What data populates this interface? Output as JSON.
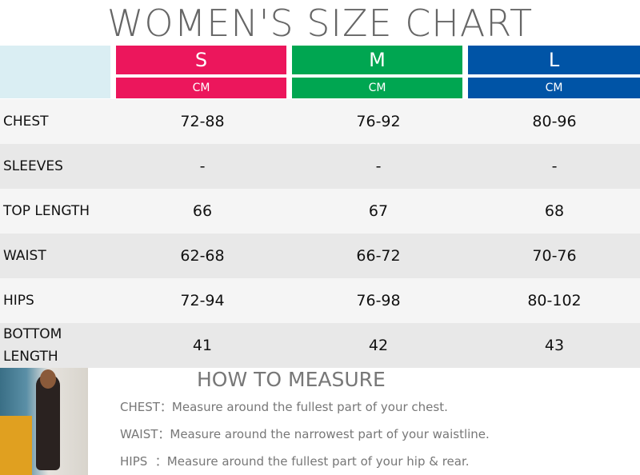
{
  "title": "WOMEN'S SIZE CHART",
  "sizes": [
    {
      "label": "S",
      "unit": "CM",
      "color": "#ec165c"
    },
    {
      "label": "M",
      "unit": "CM",
      "color": "#00a651"
    },
    {
      "label": "L",
      "unit": "CM",
      "color": "#0054a6"
    }
  ],
  "rows": [
    {
      "label": "CHEST",
      "values": [
        "72-88",
        "76-92",
        "80-96"
      ]
    },
    {
      "label": "SLEEVES",
      "values": [
        "-",
        "-",
        "-"
      ]
    },
    {
      "label": "TOP LENGTH",
      "values": [
        "66",
        "67",
        "68"
      ]
    },
    {
      "label": "WAIST",
      "values": [
        "62-68",
        "66-72",
        "70-76"
      ]
    },
    {
      "label": "HIPS",
      "values": [
        "72-94",
        "76-98",
        "80-102"
      ]
    },
    {
      "label": "BOTTOM LENGTH",
      "values": [
        "41",
        "42",
        "43"
      ]
    }
  ],
  "how_to": {
    "title": "HOW TO MEASURE",
    "items": [
      "CHEST：Measure around the fullest part of your chest.",
      "WAIST：Measure around the narrowest part of your waistline.",
      "HIPS  ：Measure around the fullest part of your hip & rear."
    ]
  }
}
